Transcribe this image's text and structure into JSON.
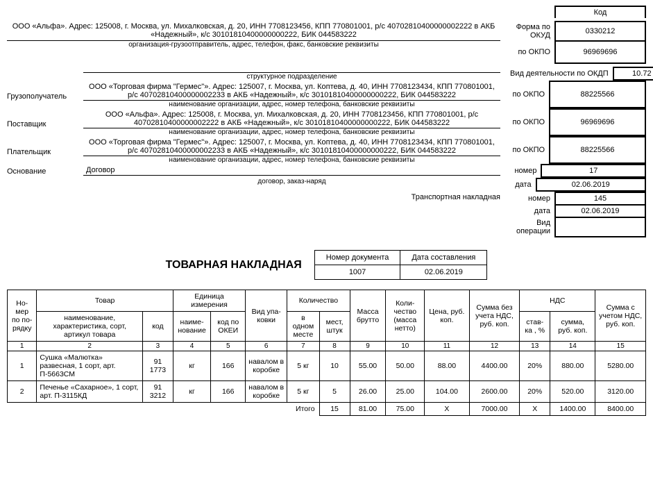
{
  "codes": {
    "header_label": "Код",
    "okud_label": "Форма по  ОКУД",
    "okud": "0330212",
    "okpo_label": "по ОКПО",
    "okdp_label": "Вид деятельности по ОКДП",
    "sender_okpo": "96969696",
    "okdp": "10.72 (ОКВЭД)",
    "consignee_okpo": "88225566",
    "supplier_okpo": "96969696",
    "payer_okpo": "88225566",
    "number_label": "номер",
    "date_label": "дата",
    "basis_number": "17",
    "basis_date": "02.06.2019",
    "tn_number": "145",
    "tn_date": "02.06.2019",
    "operation_label": "Вид операции",
    "operation": ""
  },
  "sender": {
    "text": "ООО «Альфа». Адрес: 125008, г. Москва, ул. Михалковская, д. 20, ИНН 7708123456, КПП 770801001, р/с 40702810400000002222 в АКБ «Надежный», к/с 30101810400000000222, БИК 044583222",
    "sub": "организация-грузоотправитель, адрес, телефон, факс, банковские реквизиты"
  },
  "struct": {
    "text": "",
    "sub": "структурное подразделение"
  },
  "consignee": {
    "role": "Грузополучатель",
    "text": "ООО «Торговая фирма \"Гермес\"». Адрес: 125007, г. Москва, ул. Коптева, д. 40, ИНН 7708123434, КПП 770801001, р/с 40702810400000002233 в АКБ «Надежный», к/с 30101810400000000222, БИК 044583222",
    "sub": "наименование организации, адрес, номер телефона, банковские реквизиты"
  },
  "supplier": {
    "role": "Поставщик",
    "text": "ООО «Альфа». Адрес: 125008, г. Москва, ул. Михалковская, д. 20, ИНН 7708123456, КПП 770801001, р/с 40702810400000002222 в АКБ «Надежный», к/с 30101810400000000222, БИК 044583222",
    "sub": "наименование организации, адрес, номер телефона, банковские реквизиты"
  },
  "payer": {
    "role": "Плательщик",
    "text": "ООО «Торговая фирма \"Гермес\"». Адрес: 125007, г. Москва, ул. Коптева, д. 40, ИНН 7708123434, КПП 770801001, р/с 40702810400000002233 в АКБ «Надежный», к/с 30101810400000000222, БИК 044583222",
    "sub": "наименование организации, адрес, номер телефона, банковские реквизиты"
  },
  "basis": {
    "role": "Основание",
    "text": "Договор",
    "sub": "договор, заказ-наряд"
  },
  "tn_label": "Транспортная накладная",
  "title": "ТОВАРНАЯ НАКЛАДНАЯ",
  "docbox": {
    "num_label": "Номер документа",
    "date_label": "Дата составления",
    "num": "1007",
    "date": "02.06.2019"
  },
  "table": {
    "headers": {
      "no_l1": "Но-",
      "no_l2": "мер",
      "no_l3": "по по-",
      "no_l4": "рядку",
      "goods": "Товар",
      "goods_name": "наименование, характеристика, сорт, артикул товара",
      "goods_code": "код",
      "unit": "Единица измерения",
      "unit_name": "наиме-\nнование",
      "unit_code": "код по ОКЕИ",
      "pack": "Вид упа-\nковки",
      "qty": "Количество",
      "qty_one": "в одном месте",
      "qty_places": "мест, штук",
      "gross": "Масса брутто",
      "net_l1": "Коли-",
      "net_l2": "чество",
      "net_l3": "(масса",
      "net_l4": "нетто)",
      "price": "Цена, руб. коп.",
      "sum_no_vat": "Сумма без учета НДС, руб. коп.",
      "vat": "НДС",
      "vat_rate": "став-\nка , %",
      "vat_sum": "сумма, руб. коп.",
      "sum_with_vat": "Сумма с учетом НДС, руб. коп."
    },
    "colnums": [
      "1",
      "2",
      "3",
      "4",
      "5",
      "6",
      "7",
      "8",
      "9",
      "10",
      "11",
      "12",
      "13",
      "14",
      "15"
    ],
    "rows": [
      {
        "n": "1",
        "name": "Сушка «Малютка» развесная, 1 сорт, арт. П-5663СМ",
        "code": "91 1773",
        "unit": "кг",
        "okei": "166",
        "pack": "навалом в коробке",
        "inone": "5 кг",
        "places": "10",
        "gross": "55.00",
        "net": "50.00",
        "price": "88.00",
        "sum_no_vat": "4400.00",
        "vat_rate": "20%",
        "vat_sum": "880.00",
        "sum_with_vat": "5280.00"
      },
      {
        "n": "2",
        "name": "Печенье «Сахарное», 1 сорт, арт. П-3115КД",
        "code": "91 3212",
        "unit": "кг",
        "okei": "166",
        "pack": "навалом в коробке",
        "inone": "5 кг",
        "places": "5",
        "gross": "26.00",
        "net": "25.00",
        "price": "104.00",
        "sum_no_vat": "2600.00",
        "vat_rate": "20%",
        "vat_sum": "520.00",
        "sum_with_vat": "3120.00"
      }
    ],
    "totals": {
      "label": "Итого",
      "places": "15",
      "gross": "81.00",
      "net": "75.00",
      "price": "Х",
      "sum_no_vat": "7000.00",
      "vat_rate": "Х",
      "vat_sum": "1400.00",
      "sum_with_vat": "8400.00"
    }
  }
}
